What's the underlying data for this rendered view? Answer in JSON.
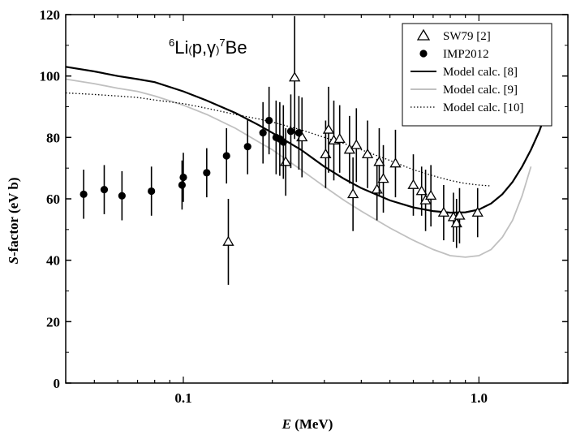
{
  "chart_data": {
    "type": "scatter",
    "title": {
      "target_mass": "6",
      "target": "Li",
      "open": "(",
      "reaction": "p,γ",
      "close": ")",
      "product_mass": "7",
      "product": "Be"
    },
    "xlabel": {
      "symbol": "E",
      "unit": " (MeV)"
    },
    "ylabel": {
      "symbol": "S",
      "rest": "-factor (eV b)"
    },
    "xscale": "log",
    "xlim": [
      0.04,
      2.0
    ],
    "ylim": [
      0,
      120
    ],
    "x_ticks": [
      {
        "value": 0.1,
        "label": "0.1"
      },
      {
        "value": 1.0,
        "label": "1.0"
      }
    ],
    "y_ticks": [
      0,
      20,
      40,
      60,
      80,
      100,
      120
    ],
    "legend": {
      "position": "top-right",
      "items": [
        {
          "label": "SW79 [2]",
          "marker": "open-triangle"
        },
        {
          "label": "IMP2012",
          "marker": "filled-circle"
        },
        {
          "label": "Model calc. [8]",
          "line": "solid-black"
        },
        {
          "label": "Model calc. [9]",
          "line": "solid-gray"
        },
        {
          "label": "Model calc. [10]",
          "line": "dotted-black"
        }
      ]
    },
    "series": [
      {
        "name": "SW79 [2]",
        "marker": "open-triangle",
        "color": "#000000",
        "points": [
          {
            "x": 0.142,
            "y": 46,
            "err": 14
          },
          {
            "x": 0.222,
            "y": 72,
            "err": 11
          },
          {
            "x": 0.238,
            "y": 99.5,
            "err": 20
          },
          {
            "x": 0.252,
            "y": 80,
            "err": 13
          },
          {
            "x": 0.303,
            "y": 74.5,
            "err": 11
          },
          {
            "x": 0.31,
            "y": 82.5,
            "err": 14
          },
          {
            "x": 0.323,
            "y": 79,
            "err": 13
          },
          {
            "x": 0.338,
            "y": 79.5,
            "err": 11
          },
          {
            "x": 0.365,
            "y": 76,
            "err": 11
          },
          {
            "x": 0.375,
            "y": 61.5,
            "err": 12
          },
          {
            "x": 0.385,
            "y": 77.5,
            "err": 12
          },
          {
            "x": 0.42,
            "y": 74.5,
            "err": 11
          },
          {
            "x": 0.452,
            "y": 63,
            "err": 10
          },
          {
            "x": 0.46,
            "y": 72,
            "err": 11
          },
          {
            "x": 0.475,
            "y": 66.5,
            "err": 11
          },
          {
            "x": 0.522,
            "y": 71.5,
            "err": 11
          },
          {
            "x": 0.6,
            "y": 64.5,
            "err": 10
          },
          {
            "x": 0.64,
            "y": 62.5,
            "err": 8
          },
          {
            "x": 0.66,
            "y": 59.5,
            "err": 10
          },
          {
            "x": 0.688,
            "y": 61,
            "err": 10
          },
          {
            "x": 0.76,
            "y": 55.5,
            "err": 9
          },
          {
            "x": 0.82,
            "y": 54,
            "err": 8
          },
          {
            "x": 0.84,
            "y": 52,
            "err": 8
          },
          {
            "x": 0.86,
            "y": 54.5,
            "err": 9
          },
          {
            "x": 0.99,
            "y": 55.5,
            "err": 8
          }
        ]
      },
      {
        "name": "IMP2012",
        "marker": "filled-circle",
        "color": "#000000",
        "points": [
          {
            "x": 0.046,
            "y": 61.5,
            "err": 8
          },
          {
            "x": 0.054,
            "y": 63,
            "err": 8
          },
          {
            "x": 0.062,
            "y": 61,
            "err": 8
          },
          {
            "x": 0.078,
            "y": 62.5,
            "err": 8
          },
          {
            "x": 0.099,
            "y": 64.5,
            "err": 8
          },
          {
            "x": 0.1,
            "y": 67,
            "err": 8
          },
          {
            "x": 0.12,
            "y": 68.5,
            "err": 8
          },
          {
            "x": 0.14,
            "y": 74,
            "err": 9
          },
          {
            "x": 0.165,
            "y": 77,
            "err": 9
          },
          {
            "x": 0.186,
            "y": 81.5,
            "err": 10
          },
          {
            "x": 0.195,
            "y": 85.5,
            "err": 11
          },
          {
            "x": 0.206,
            "y": 80,
            "err": 12
          },
          {
            "x": 0.212,
            "y": 79.5,
            "err": 12
          },
          {
            "x": 0.218,
            "y": 78.5,
            "err": 12
          },
          {
            "x": 0.231,
            "y": 82,
            "err": 12
          },
          {
            "x": 0.246,
            "y": 81.5,
            "err": 12
          }
        ]
      }
    ],
    "curves": [
      {
        "name": "Model calc. [8]",
        "style": "solid",
        "color": "#000000",
        "x": [
          0.04,
          0.05,
          0.06,
          0.07,
          0.08,
          0.1,
          0.12,
          0.15,
          0.18,
          0.2,
          0.25,
          0.3,
          0.35,
          0.4,
          0.5,
          0.6,
          0.7,
          0.8,
          0.9,
          1.0,
          1.1,
          1.2,
          1.3,
          1.4,
          1.5,
          1.6,
          1.7
        ],
        "y": [
          103,
          101.5,
          100,
          99,
          98,
          95,
          92,
          88,
          84,
          81.5,
          76,
          70.5,
          66.5,
          63.5,
          59.5,
          57.2,
          56,
          55.5,
          55.6,
          56.5,
          58.5,
          61.5,
          65.5,
          70.5,
          76,
          82,
          89
        ]
      },
      {
        "name": "Model calc. [9]",
        "style": "solid",
        "color": "#c0c0c0",
        "x": [
          0.04,
          0.05,
          0.06,
          0.07,
          0.08,
          0.1,
          0.12,
          0.15,
          0.18,
          0.2,
          0.25,
          0.3,
          0.35,
          0.4,
          0.5,
          0.6,
          0.7,
          0.8,
          0.9,
          1.0,
          1.1,
          1.2,
          1.3,
          1.4,
          1.5
        ],
        "y": [
          99,
          97.5,
          96,
          95,
          93.5,
          90.5,
          87.5,
          83,
          78.5,
          76,
          69.5,
          64,
          59.5,
          56,
          50.5,
          46.5,
          43.5,
          41.5,
          41,
          41.5,
          43.5,
          47.5,
          53,
          61,
          70.5
        ]
      },
      {
        "name": "Model calc. [10]",
        "style": "dotted",
        "color": "#000000",
        "x": [
          0.04,
          0.05,
          0.06,
          0.07,
          0.08,
          0.1,
          0.12,
          0.15,
          0.18,
          0.2,
          0.25,
          0.3,
          0.35,
          0.4,
          0.5,
          0.6,
          0.7,
          0.8,
          0.9,
          1.0,
          1.1
        ],
        "y": [
          94.5,
          94,
          93.5,
          93,
          92.2,
          91,
          89.5,
          87.5,
          86,
          85,
          82.5,
          80,
          78,
          76,
          72.5,
          69.5,
          67.5,
          66,
          65,
          64.5,
          64.2
        ]
      }
    ]
  }
}
